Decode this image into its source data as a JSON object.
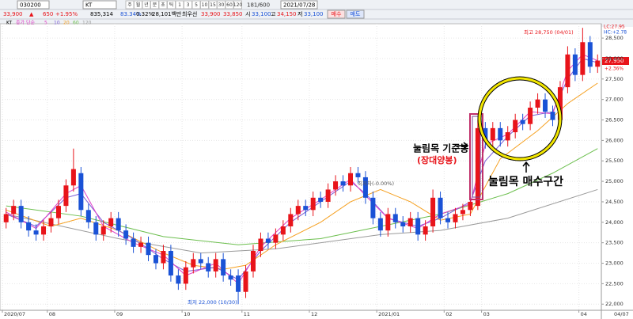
{
  "toolbar": {
    "code": "030200",
    "name": "KT",
    "periods": [
      "주",
      "월",
      "년",
      "분",
      "초",
      "틱",
      "1",
      "3",
      "5",
      "10",
      "15",
      "30",
      "60",
      "120"
    ],
    "count": "181/600",
    "date": "2021/07/28"
  },
  "quote": {
    "items": [
      "33,900",
      "▲",
      "650",
      "+1.95%",
      "835,314",
      "83.34%",
      "0.32%",
      "28,101백만",
      "최우선",
      "33,900",
      "33,850",
      "시",
      "33,100",
      "고",
      "34,150",
      "저",
      "33,100"
    ],
    "buttons": [
      "매수",
      "매도"
    ]
  },
  "chart_data": {
    "type": "candlestick",
    "name": "KT",
    "legend_title": "종가 단순",
    "xlim": [
      0,
      80
    ],
    "xticks": [
      {
        "value": 0,
        "label": "2020/07"
      },
      {
        "value": 6,
        "label": "08"
      },
      {
        "value": 15,
        "label": "09"
      },
      {
        "value": 24,
        "label": "10"
      },
      {
        "value": 32,
        "label": "11"
      },
      {
        "value": 41,
        "label": "12"
      },
      {
        "value": 50,
        "label": "2021/01"
      },
      {
        "value": 59,
        "label": "02"
      },
      {
        "value": 64,
        "label": "03"
      },
      {
        "value": 77,
        "label": "04"
      }
    ],
    "last_date": "04/07",
    "ylim": [
      21850,
      28850
    ],
    "yticks": [
      {
        "value": 22000,
        "label": "22,000"
      },
      {
        "value": 22500,
        "label": "22,500"
      },
      {
        "value": 23000,
        "label": "23,000"
      },
      {
        "value": 23500,
        "label": "23,500"
      },
      {
        "value": 24000,
        "label": "24,000"
      },
      {
        "value": 24500,
        "label": "24,500"
      },
      {
        "value": 25000,
        "label": "25,000"
      },
      {
        "value": 25500,
        "label": "25,500"
      },
      {
        "value": 26000,
        "label": "26,000"
      },
      {
        "value": 26500,
        "label": "26,500"
      },
      {
        "value": 27000,
        "label": "27,000"
      },
      {
        "value": 27500,
        "label": "27,500"
      },
      {
        "value": 28000,
        "label": "28,000"
      },
      {
        "value": 28500,
        "label": "28,500"
      }
    ],
    "grid": true,
    "up_color": "#e8141a",
    "down_color": "#1a52d6",
    "open": [
      24000,
      24200,
      24400,
      24000,
      23800,
      23700,
      23900,
      24100,
      24400,
      24900,
      25200,
      24300,
      24000,
      23700,
      23900,
      24100,
      23800,
      23600,
      23400,
      23500,
      23200,
      23000,
      23300,
      22700,
      22500,
      22900,
      23100,
      23000,
      22800,
      23100,
      22700,
      22700,
      22300,
      22800,
      23300,
      23600,
      23500,
      23700,
      23900,
      24200,
      24400,
      24300,
      24600,
      24500,
      24800,
      25000,
      24900,
      25200,
      25100,
      24600,
      24100,
      23800,
      24200,
      24000,
      23900,
      24100,
      23700,
      23900,
      24600,
      24100,
      24000,
      24200,
      24300,
      24400,
      26300,
      26000,
      26300,
      26000,
      26200,
      26500,
      26400,
      26800,
      27000,
      26700,
      26500,
      27300,
      28100,
      27600,
      28400,
      27800
    ],
    "high": [
      24350,
      24550,
      24550,
      24150,
      23950,
      24050,
      24250,
      24550,
      25050,
      25800,
      25350,
      24450,
      24150,
      24050,
      24250,
      24250,
      23950,
      23750,
      23650,
      23650,
      23350,
      23450,
      23450,
      22850,
      23050,
      23250,
      23250,
      23150,
      23250,
      23250,
      22850,
      22850,
      22950,
      23450,
      23750,
      23750,
      23850,
      24050,
      24350,
      24550,
      24550,
      24750,
      24750,
      24950,
      25150,
      25150,
      25350,
      25350,
      25250,
      24750,
      24250,
      24350,
      24350,
      24150,
      24250,
      24250,
      24050,
      24800,
      24750,
      24250,
      24350,
      24450,
      24650,
      26500,
      26450,
      26450,
      26450,
      26350,
      26650,
      26650,
      26950,
      27150,
      27150,
      26850,
      27450,
      28300,
      28250,
      28750,
      28550,
      28100
    ],
    "low": [
      23850,
      24050,
      23850,
      23650,
      23550,
      23550,
      23750,
      23950,
      24250,
      24750,
      24150,
      23850,
      23550,
      23550,
      23750,
      23650,
      23450,
      23250,
      23250,
      23050,
      22850,
      22850,
      22550,
      22350,
      22350,
      22750,
      22850,
      22650,
      22650,
      22550,
      22450,
      22000,
      22150,
      22650,
      23150,
      23350,
      23350,
      23550,
      23750,
      24050,
      24150,
      24150,
      24350,
      24350,
      24650,
      24750,
      24750,
      24950,
      24450,
      23950,
      23650,
      23650,
      23850,
      23750,
      23750,
      23550,
      23550,
      23750,
      23950,
      23850,
      23850,
      24050,
      24150,
      24300,
      25800,
      25850,
      25850,
      25850,
      26050,
      26250,
      26250,
      26650,
      26550,
      26350,
      26350,
      27150,
      27450,
      27450,
      27650,
      27650
    ],
    "close": [
      24200,
      24400,
      24000,
      23800,
      23700,
      23900,
      24100,
      24400,
      24900,
      25300,
      24300,
      24000,
      23700,
      23900,
      24100,
      23800,
      23600,
      23400,
      23500,
      23200,
      23000,
      23300,
      22700,
      22500,
      22900,
      23100,
      23000,
      22800,
      23100,
      22700,
      22600,
      22300,
      22800,
      23300,
      23600,
      23500,
      23700,
      23900,
      24200,
      24400,
      24300,
      24600,
      24500,
      24800,
      25000,
      24900,
      25200,
      25100,
      24600,
      24100,
      23800,
      24200,
      24000,
      23900,
      24100,
      23700,
      23900,
      24600,
      24100,
      24000,
      24200,
      24300,
      24500,
      26300,
      26000,
      26300,
      26000,
      26200,
      26500,
      26400,
      26800,
      27000,
      26700,
      26500,
      27300,
      28100,
      27600,
      28400,
      27800,
      27950
    ],
    "series": [
      {
        "name": "5",
        "color": "#e040c8",
        "x": [
          0,
          4,
          8,
          10,
          13,
          17,
          21,
          24,
          28,
          31,
          34,
          38,
          42,
          46,
          48,
          51,
          55,
          58,
          62,
          64,
          67,
          70,
          73,
          75,
          77,
          79
        ],
        "values": [
          24250,
          23850,
          24700,
          24900,
          23900,
          23500,
          23200,
          22700,
          23000,
          22500,
          23400,
          24100,
          24550,
          25050,
          24650,
          24100,
          23850,
          24200,
          24450,
          25900,
          26150,
          26700,
          26650,
          27700,
          28100,
          27950
        ]
      },
      {
        "name": "10",
        "color": "#7c5cd6",
        "x": [
          0,
          4,
          8,
          10,
          13,
          17,
          21,
          24,
          28,
          31,
          34,
          38,
          42,
          46,
          48,
          51,
          55,
          58,
          62,
          64,
          67,
          70,
          73,
          75,
          77,
          79
        ],
        "values": [
          24200,
          23900,
          24600,
          24700,
          24000,
          23600,
          23100,
          22800,
          22900,
          22600,
          23300,
          24000,
          24500,
          25000,
          24700,
          24100,
          23900,
          24100,
          24500,
          25500,
          26100,
          26600,
          26700,
          27500,
          28000,
          27900
        ]
      },
      {
        "name": "20",
        "color": "#f5a020",
        "x": [
          0,
          6,
          10,
          15,
          21,
          25,
          29,
          32,
          36,
          42,
          46,
          50,
          54,
          58,
          62,
          66,
          71,
          75,
          79
        ],
        "values": [
          24300,
          23900,
          24100,
          23800,
          23250,
          22950,
          22850,
          22950,
          23450,
          24000,
          24500,
          24800,
          24500,
          24050,
          24200,
          25550,
          26240,
          26900,
          27400
        ]
      },
      {
        "name": "60",
        "color": "#6cbf4e",
        "x": [
          0,
          10,
          21,
          31,
          42,
          50,
          58,
          67,
          73,
          79
        ],
        "values": [
          24400,
          24150,
          23650,
          23450,
          23600,
          23900,
          24200,
          24700,
          25200,
          25800
        ]
      },
      {
        "name": "120",
        "color": "#9a9a9a",
        "x": [
          0,
          15,
          26,
          36,
          50,
          58,
          67,
          79
        ],
        "values": [
          24200,
          23600,
          23250,
          23350,
          23700,
          23800,
          24100,
          24800
        ]
      }
    ],
    "price_label": "27,950",
    "change_label": "+2.36%",
    "lc_label": "LC:27.95",
    "hc_label": "HC:+2.78",
    "annotations": {
      "max": "최고 28,750 (04/01)",
      "min": "최저 22,000 (10/30)",
      "mid": "최저차(-0.00%)",
      "base": "눌림목 기준봉",
      "base_note": "(장대양봉)",
      "zone": "눌림목 매수구간"
    }
  }
}
